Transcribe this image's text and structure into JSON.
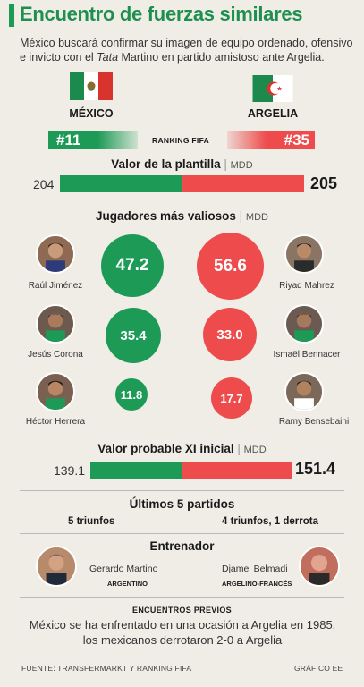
{
  "header": {
    "title": "Encuentro de fuerzas similares",
    "subtitle_part1": "México buscará confirmar su imagen de equipo ordenado, ofensivo e invicto con el ",
    "subtitle_italic": "Tata",
    "subtitle_part2": " Martino en partido amistoso ante Argelia."
  },
  "teams": {
    "left": {
      "name": "MÉXICO",
      "rank": "#11",
      "squad_value": "204",
      "xi_value": "139.1",
      "record": "5 triunfos"
    },
    "right": {
      "name": "ARGELIA",
      "rank": "#35",
      "squad_value": "205",
      "xi_value": "151.4",
      "record": "4 triunfos, 1 derrota"
    }
  },
  "ranking_label": "RANKING FIFA",
  "squad": {
    "title": "Valor de la plantilla",
    "unit": "MDD"
  },
  "players": {
    "title": "Jugadores más valiosos",
    "unit": "MDD",
    "left": [
      {
        "name": "Raúl Jiménez",
        "value": "47.2"
      },
      {
        "name": "Jesús Corona",
        "value": "35.4"
      },
      {
        "name": "Héctor Herrera",
        "value": "11.8"
      }
    ],
    "right": [
      {
        "name": "Riyad Mahrez",
        "value": "56.6"
      },
      {
        "name": "Ismaël Bennacer",
        "value": "33.0"
      },
      {
        "name": "Ramy Bensebaini",
        "value": "17.7"
      }
    ]
  },
  "xi": {
    "title": "Valor probable XI inicial",
    "unit": "MDD"
  },
  "last5": {
    "title": "Últimos 5 partidos"
  },
  "coaches": {
    "title": "Entrenador",
    "left": {
      "name": "Gerardo Martino",
      "nationality": "ARGENTINO"
    },
    "right": {
      "name": "Djamel Belmadi",
      "nationality": "ARGELINO-FRANCÉS"
    }
  },
  "previous": {
    "title": "ENCUENTROS PREVIOS",
    "text": "México se ha enfrentado en una ocasión a Argelia en 1985, los mexicanos derrotaron 2-0 a Argelia"
  },
  "footer": {
    "source": "FUENTE: TRANSFERMARKT Y RANKING FIFA",
    "credit": "GRÁFICO EE"
  },
  "colors": {
    "mexico": "#1d9a55",
    "algeria": "#ee4c4c",
    "background": "#efede6"
  }
}
